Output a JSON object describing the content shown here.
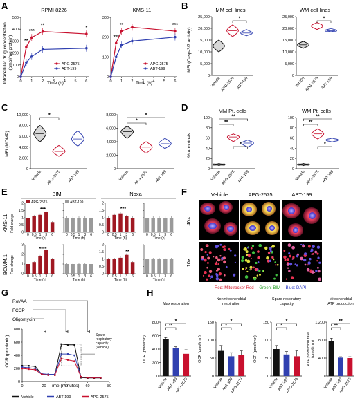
{
  "panel_labels": [
    "A",
    "B",
    "C",
    "D",
    "E",
    "F",
    "G",
    "H"
  ],
  "colors": {
    "apg": "#c8102e",
    "abt": "#3040b0",
    "vehicle": "#111111",
    "grey": "#9a9a9a",
    "red_dark": "#a01822"
  },
  "icons": {
    "arrow": "down-arrow-icon"
  },
  "panelA": {
    "ylabel": "Intracellular drug concentration\n(pmol/mg protein)",
    "charts": [
      {
        "title": "RPMI 8226",
        "xlabel": "Time (h)",
        "legend": [
          "APG-2575",
          "ABT-199"
        ],
        "sig": [
          "**",
          "***",
          "**",
          "*"
        ]
      },
      {
        "title": "KMS-11",
        "xlabel": "Time (h)",
        "legend": [
          "APG-2575",
          "ABT-199"
        ],
        "sig": [
          "***",
          "**",
          "***"
        ]
      }
    ]
  },
  "panelB": {
    "title1": "MM cell lines",
    "title2": "WM cell lines",
    "ylabel": "MFI (Casp-3/7 activity)",
    "sig": "*"
  },
  "panelC": {
    "ylabel": "MFI (MOMP)",
    "sig": "*"
  },
  "panelD": {
    "title1": "MM Pt. cells",
    "title2": "WM Pt. cells",
    "ylabel": "% Apoptosis",
    "sig2": "**",
    "sig1": "*"
  },
  "panelE": {
    "headers": [
      "BIM",
      "Noxa"
    ],
    "rows": [
      "KMS-11",
      "BCWM.1"
    ],
    "ylabel": "Fold change",
    "legend": [
      "APG-2575",
      "ABT-199"
    ],
    "xlabel": "Time (h)",
    "sig": [
      "***",
      "****",
      "***",
      "**"
    ]
  },
  "panelF": {
    "columns": [
      "Vehicle",
      "APG-2575",
      "ABT-199"
    ],
    "rows": [
      "40×",
      "10×"
    ],
    "caption": [
      "Red: Mitotracker Red",
      "Green: BIM",
      "Blue: DAPI"
    ]
  },
  "panelG": {
    "injections": [
      "Rot/AA",
      "FCCP",
      "Oligomycin"
    ],
    "ylabel": "OCR (pmol/min)",
    "xlabel": "Time (minutes)",
    "annotation": [
      "Spare",
      "respiratory",
      "capacity",
      "(vehicle)"
    ],
    "legend": [
      "Vehicle",
      "ABT-199",
      "APG-2575"
    ]
  },
  "panelH": {
    "groups": [
      "Vehicle",
      "ABT-199",
      "APG-2575"
    ],
    "charts": [
      {
        "title": [
          "Max respiration"
        ],
        "ylabel": "OCR (pmol/min)",
        "sig": [
          "**",
          "*"
        ]
      },
      {
        "title": [
          "Nonmitochondrial",
          "respiration"
        ],
        "ylabel": "OCR (pmol/min)",
        "sig": [
          "*",
          "*"
        ]
      },
      {
        "title": [
          "Spare respiratory",
          "capacity"
        ],
        "ylabel": "OCR (pmol/min)",
        "sig": [
          "*",
          "*"
        ]
      },
      {
        "title": [
          "Mitochondrial",
          "ATP production"
        ],
        "ylabel": "ATP production rate\n(pmol/min)",
        "sig": [
          "**",
          "**"
        ]
      }
    ]
  },
  "chart_data": [
    {
      "type": "line",
      "id": "A1",
      "title": "RPMI 8226",
      "xlabel": "Time (h)",
      "x": [
        0,
        0.5,
        1,
        2,
        6
      ],
      "series": [
        {
          "name": "APG-2575",
          "values": [
            0,
            250,
            330,
            380,
            360
          ]
        },
        {
          "name": "ABT-199",
          "values": [
            0,
            120,
            170,
            230,
            240
          ]
        }
      ],
      "xlim": [
        0,
        6.2
      ],
      "ylim": [
        0,
        500
      ],
      "xticks": [
        0,
        1,
        2,
        3,
        4,
        5,
        6
      ],
      "yticks": [
        0,
        100,
        200,
        300,
        400,
        500
      ]
    },
    {
      "type": "line",
      "id": "A2",
      "title": "KMS-11",
      "xlabel": "Time (h)",
      "x": [
        0,
        0.5,
        1,
        2,
        6
      ],
      "series": [
        {
          "name": "APG-2575",
          "values": [
            0,
            170,
            230,
            250,
            230
          ]
        },
        {
          "name": "ABT-199",
          "values": [
            0,
            100,
            160,
            180,
            200
          ]
        }
      ],
      "xlim": [
        0,
        6.2
      ],
      "ylim": [
        0,
        300
      ],
      "xticks": [
        0,
        1,
        2,
        3,
        4,
        5,
        6
      ],
      "yticks": [
        0,
        100,
        200,
        300
      ]
    },
    {
      "type": "violin",
      "id": "B1",
      "title": "MM cell lines",
      "categories": [
        "Vehicle",
        "APG-2575",
        "ABT-199"
      ],
      "values": [
        12500,
        19000,
        18000
      ],
      "ranges": [
        [
          10000,
          15000
        ],
        [
          16500,
          21500
        ],
        [
          16800,
          19500
        ]
      ],
      "ylim": [
        0,
        25000
      ],
      "yticks": [
        0,
        5000,
        10000,
        15000,
        20000,
        25000
      ]
    },
    {
      "type": "violin",
      "id": "B2",
      "title": "WM cell lines",
      "categories": [
        "Vehicle",
        "APG-2575",
        "ABT-199"
      ],
      "values": [
        13000,
        21000,
        19000
      ],
      "ranges": [
        [
          11500,
          14500
        ],
        [
          19500,
          22500
        ],
        [
          18500,
          20000
        ]
      ],
      "ylim": [
        0,
        25000
      ],
      "yticks": [
        0,
        5000,
        10000,
        15000,
        20000,
        25000
      ]
    },
    {
      "type": "violin",
      "id": "C1",
      "categories": [
        "Vehicle",
        "APG-2575",
        "ABT-199"
      ],
      "values": [
        6500,
        3200,
        5500
      ],
      "ranges": [
        [
          5000,
          8000
        ],
        [
          2300,
          4300
        ],
        [
          4200,
          7000
        ]
      ],
      "ylim": [
        0,
        10000
      ],
      "yticks": [
        0,
        2000,
        4000,
        6000,
        8000,
        10000
      ]
    },
    {
      "type": "violin",
      "id": "C2",
      "categories": [
        "Vehicle",
        "APG-2575",
        "ABT-199"
      ],
      "values": [
        5500,
        3200,
        3700
      ],
      "ranges": [
        [
          4500,
          6300
        ],
        [
          2300,
          4000
        ],
        [
          3000,
          4500
        ]
      ],
      "ylim": [
        0,
        8000
      ],
      "yticks": [
        0,
        2000,
        4000,
        6000,
        8000
      ]
    },
    {
      "type": "violin",
      "id": "D1",
      "title": "MM Pt. cells",
      "categories": [
        "Vehicle",
        "APG-2575",
        "ABT-199"
      ],
      "values": [
        8,
        62,
        50
      ],
      "ranges": [
        [
          6,
          10
        ],
        [
          53,
          68
        ],
        [
          42,
          56
        ]
      ],
      "ylim": [
        0,
        100
      ],
      "yticks": [
        0,
        20,
        40,
        60,
        80,
        100
      ]
    },
    {
      "type": "violin",
      "id": "D2",
      "title": "WM Pt. cells",
      "categories": [
        "Vehicle",
        "APG-2575",
        "ABT-199"
      ],
      "values": [
        8,
        68,
        56
      ],
      "ranges": [
        [
          6,
          10
        ],
        [
          58,
          78
        ],
        [
          52,
          60
        ]
      ],
      "ylim": [
        0,
        100
      ],
      "yticks": [
        0,
        20,
        40,
        60,
        80,
        100
      ]
    },
    {
      "type": "bar",
      "id": "E",
      "categories": [
        "0",
        "0.5",
        "1",
        "3",
        "6"
      ],
      "panels": [
        {
          "row": "KMS-11",
          "gene": "BIM",
          "series": "APG-2575",
          "values": [
            1.0,
            1.1,
            1.2,
            1.4,
            0.7
          ],
          "ylim": [
            0,
            2.0
          ]
        },
        {
          "row": "KMS-11",
          "gene": "BIM",
          "series": "ABT-199",
          "values": [
            1.0,
            1.0,
            1.0,
            1.0,
            1.0
          ],
          "ylim": [
            0,
            2.0
          ]
        },
        {
          "row": "KMS-11",
          "gene": "Noxa",
          "series": "APG-2575",
          "values": [
            1.0,
            1.2,
            1.3,
            1.1,
            1.0
          ],
          "ylim": [
            0,
            2.0
          ]
        },
        {
          "row": "KMS-11",
          "gene": "Noxa",
          "series": "ABT-199",
          "values": [
            1.0,
            1.0,
            1.0,
            1.0,
            1.0
          ],
          "ylim": [
            0,
            2.0
          ]
        },
        {
          "row": "BCWM.1",
          "gene": "BIM",
          "series": "APG-2575",
          "values": [
            1.0,
            1.2,
            1.8,
            2.5,
            1.5
          ],
          "ylim": [
            0,
            3.0
          ]
        },
        {
          "row": "BCWM.1",
          "gene": "BIM",
          "series": "ABT-199",
          "values": [
            1.0,
            1.0,
            1.0,
            1.0,
            1.0
          ],
          "ylim": [
            0,
            3.0
          ]
        },
        {
          "row": "BCWM.1",
          "gene": "Noxa",
          "series": "APG-2575",
          "values": [
            1.0,
            1.0,
            1.1,
            1.3,
            0.8
          ],
          "ylim": [
            0,
            2.0
          ]
        },
        {
          "row": "BCWM.1",
          "gene": "Noxa",
          "series": "ABT-199",
          "values": [
            1.0,
            1.0,
            1.0,
            1.0,
            1.0
          ],
          "ylim": [
            0,
            2.0
          ]
        }
      ]
    },
    {
      "type": "line",
      "id": "G",
      "xlabel": "Time (minutes)",
      "ylabel": "OCR (pmol/min)",
      "x": [
        0,
        6,
        12,
        18,
        24,
        30,
        36,
        42,
        48,
        54,
        60,
        66,
        72
      ],
      "series": [
        {
          "name": "Vehicle",
          "values": [
            240,
            240,
            230,
            110,
            100,
            100,
            570,
            560,
            560,
            60,
            55,
            55,
            55
          ]
        },
        {
          "name": "ABT-199",
          "values": [
            220,
            210,
            200,
            120,
            110,
            110,
            420,
            420,
            400,
            70,
            60,
            60,
            60
          ]
        },
        {
          "name": "APG-2575",
          "values": [
            200,
            190,
            180,
            110,
            100,
            100,
            350,
            330,
            310,
            70,
            60,
            60,
            60
          ]
        }
      ],
      "xlim": [
        0,
        80
      ],
      "ylim": [
        0,
        800
      ],
      "xticks": [
        0,
        20,
        40,
        60,
        80
      ],
      "yticks": [
        0,
        200,
        400,
        600,
        800
      ]
    },
    {
      "type": "bar",
      "id": "H1",
      "title": "Max respiration",
      "categories": [
        "Vehicle",
        "ABT-199",
        "APG-2575"
      ],
      "values": [
        550,
        420,
        330
      ],
      "errors": [
        20,
        15,
        60
      ],
      "ylim": [
        0,
        800
      ],
      "yticks": [
        0,
        200,
        400,
        600,
        800
      ]
    },
    {
      "type": "bar",
      "id": "H2",
      "title": "Nonmitochondrial respiration",
      "categories": [
        "Vehicle",
        "ABT-199",
        "APG-2575"
      ],
      "values": [
        70,
        55,
        58
      ],
      "errors": [
        15,
        10,
        12
      ],
      "ylim": [
        0,
        150
      ],
      "yticks": [
        0,
        50,
        100,
        150
      ]
    },
    {
      "type": "bar",
      "id": "H3",
      "title": "Spare respiratory capacity",
      "categories": [
        "Vehicle",
        "ABT-199",
        "APG-2575"
      ],
      "values": [
        75,
        60,
        55
      ],
      "errors": [
        10,
        8,
        15
      ],
      "ylim": [
        0,
        150
      ],
      "yticks": [
        0,
        50,
        100,
        150
      ]
    },
    {
      "type": "bar",
      "id": "H4",
      "title": "Mitochondrial ATP production",
      "categories": [
        "Vehicle",
        "ABT-199",
        "APG-2575"
      ],
      "values": [
        780,
        410,
        400
      ],
      "errors": [
        60,
        20,
        30
      ],
      "ylim": [
        0,
        1200
      ],
      "yticks": [
        0,
        400,
        800,
        1200
      ]
    }
  ]
}
